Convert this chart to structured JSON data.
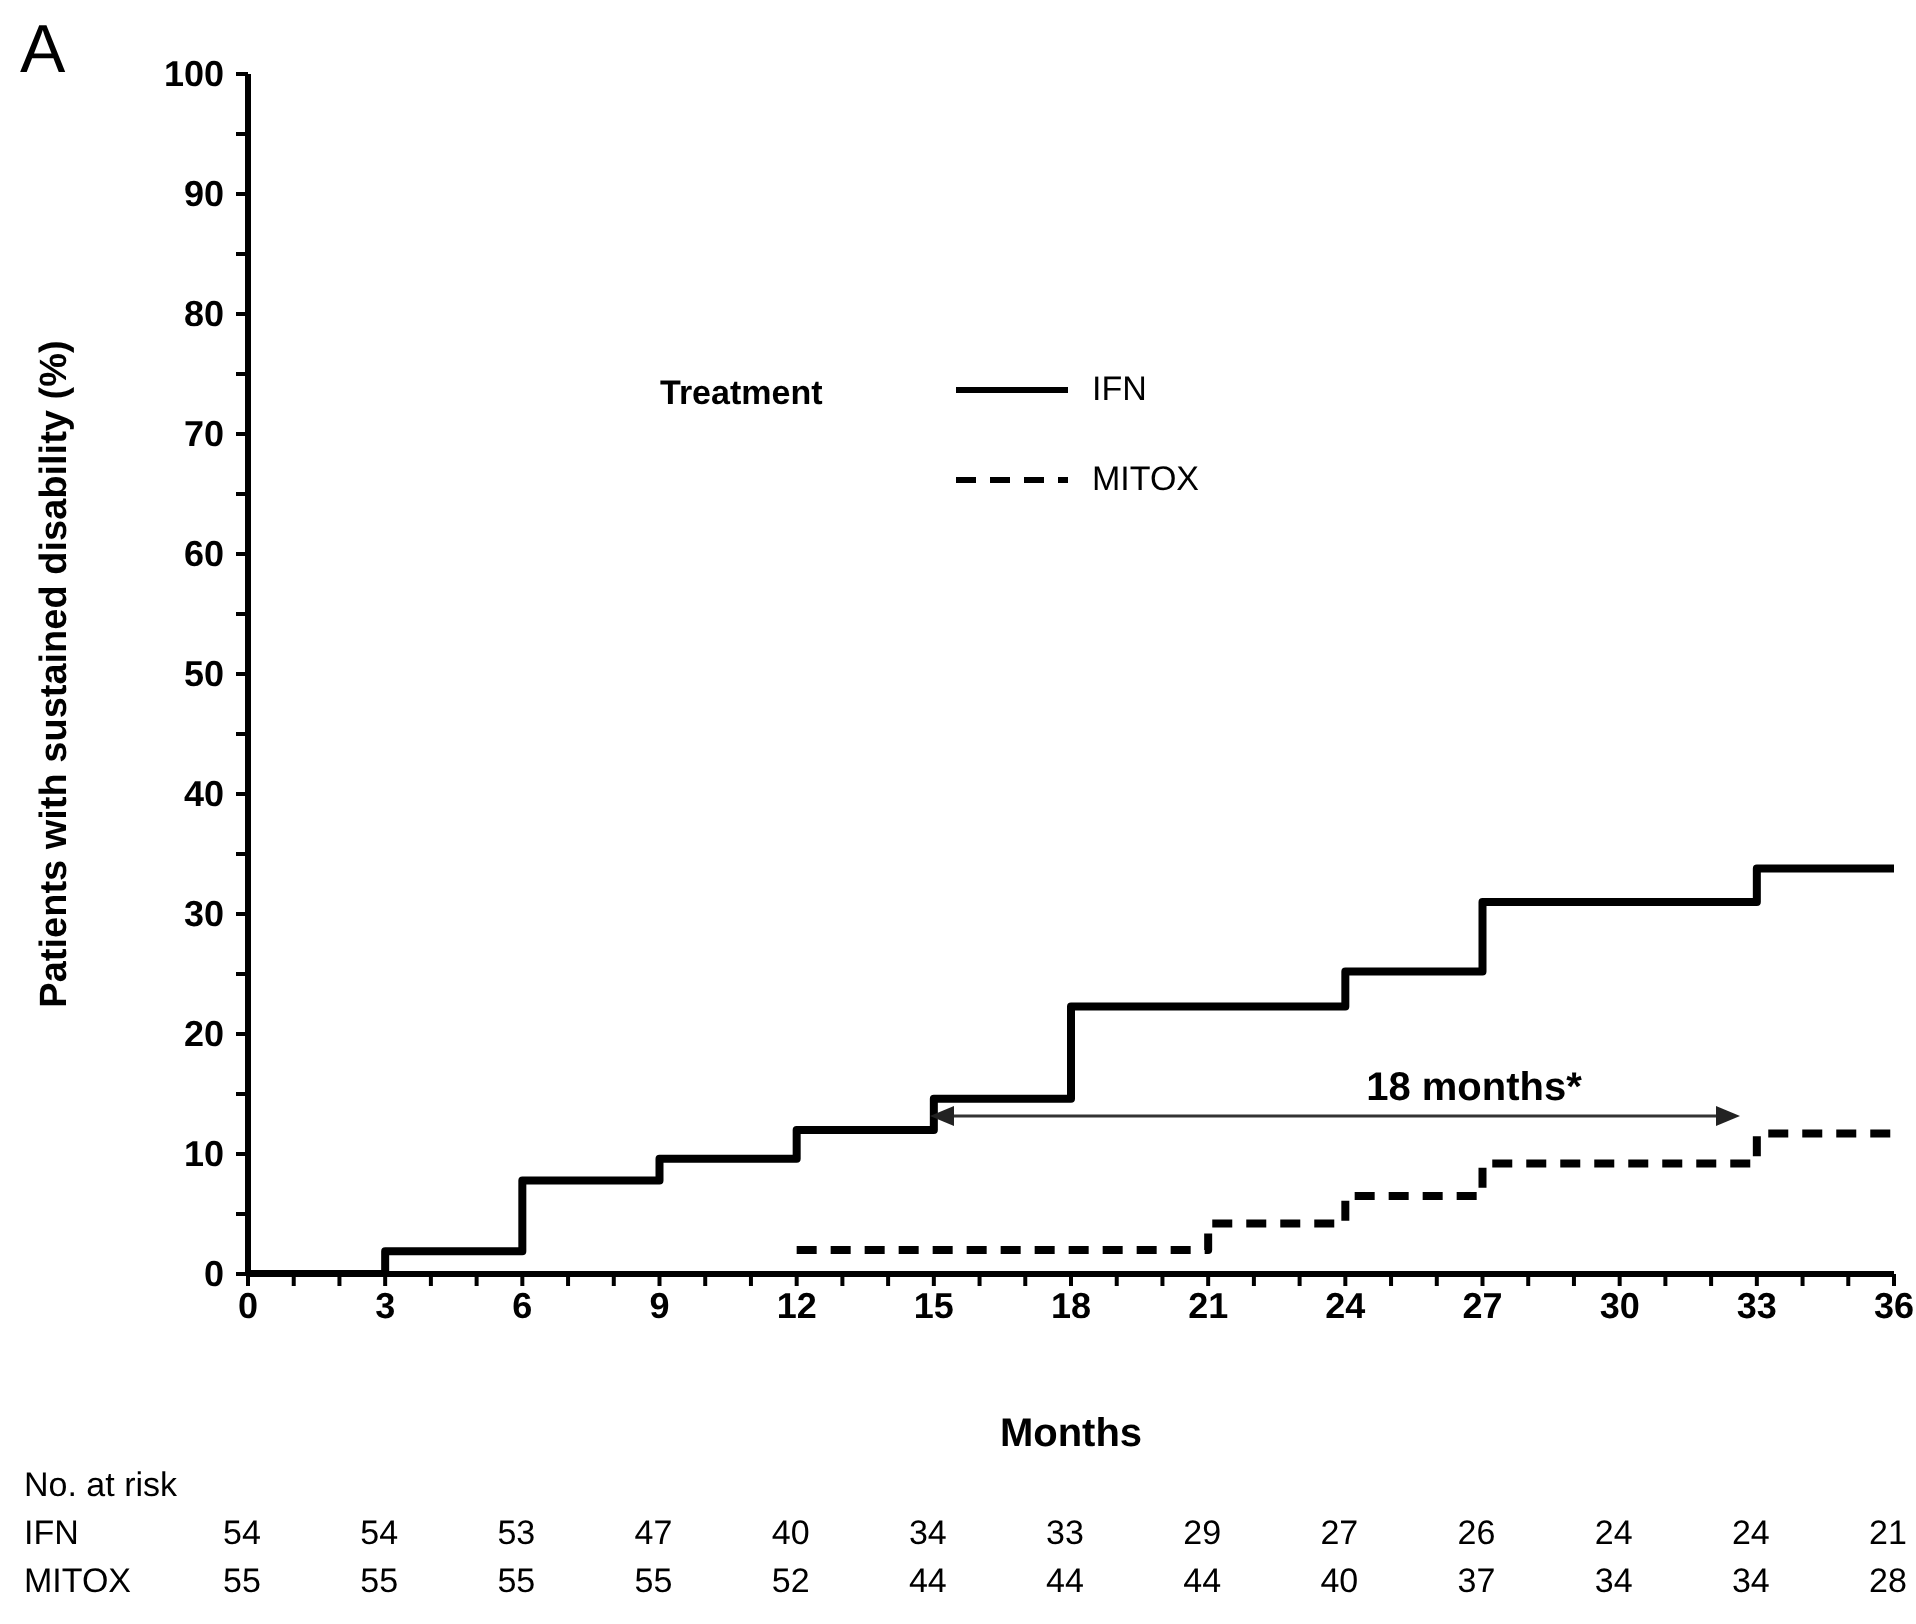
{
  "chart_data": {
    "type": "step",
    "title": "A",
    "xlabel": "Months",
    "ylabel": "Patients with sustained disability (%)",
    "legend_title": "Treatment",
    "legend": "top",
    "xlim": [
      0,
      36
    ],
    "ylim": [
      0,
      100
    ],
    "xticks": [
      0,
      {
        "value": 1,
        "label": null
      },
      {
        "value": 2,
        "label": null
      },
      3,
      {
        "value": 4,
        "label": null
      },
      {
        "value": 5,
        "label": null
      },
      6,
      {
        "value": 7,
        "label": null
      },
      {
        "value": 8,
        "label": null
      },
      9,
      {
        "value": 10,
        "label": null
      },
      {
        "value": 11,
        "label": null
      },
      12,
      {
        "value": 13,
        "label": null
      },
      {
        "value": 14,
        "label": null
      },
      15,
      {
        "value": 16,
        "label": null
      },
      {
        "value": 17,
        "label": null
      },
      18,
      {
        "value": 19,
        "label": null
      },
      {
        "value": 20,
        "label": null
      },
      21,
      {
        "value": 22,
        "label": null
      },
      {
        "value": 23,
        "label": null
      },
      24,
      {
        "value": 25,
        "label": null
      },
      {
        "value": 26,
        "label": null
      },
      27,
      {
        "value": 28,
        "label": null
      },
      {
        "value": 29,
        "label": null
      },
      30,
      {
        "value": 31,
        "label": null
      },
      {
        "value": 32,
        "label": null
      },
      33,
      {
        "value": 34,
        "label": null
      },
      {
        "value": 35,
        "label": null
      },
      36
    ],
    "yticks": [
      0,
      {
        "value": 5,
        "label": null
      },
      10,
      {
        "value": 15,
        "label": null
      },
      20,
      {
        "value": 25,
        "label": null
      },
      30,
      {
        "value": 35,
        "label": null
      },
      40,
      {
        "value": 45,
        "label": null
      },
      50,
      {
        "value": 55,
        "label": null
      },
      60,
      {
        "value": 65,
        "label": null
      },
      70,
      {
        "value": 75,
        "label": null
      },
      80,
      {
        "value": 85,
        "label": null
      },
      90,
      {
        "value": 95,
        "label": null
      },
      100
    ],
    "series": [
      {
        "name": "IFN",
        "color": "#000000",
        "line_style": "solid",
        "x": [
          0,
          3,
          6,
          9,
          12,
          15,
          18,
          24,
          27,
          33,
          36
        ],
        "values": [
          0,
          1.9,
          7.8,
          9.6,
          12,
          14.6,
          22.3,
          25.2,
          31,
          33.8,
          33.8
        ]
      },
      {
        "name": "MITOX",
        "color": "#000000",
        "line_style": "dashed",
        "x": [
          12,
          21,
          24,
          27,
          33,
          36
        ],
        "values": [
          2,
          4.2,
          6.5,
          9.2,
          11.7,
          11.7
        ]
      }
    ],
    "annotations": [
      "18 months*",
      "No. at risk",
      "IFN 54 54 53 47 40 34 33 29 27 26 24 24 21",
      "MITOX 55 55 55 55 52 44 44 44 40 37 34 34 28"
    ]
  }
}
